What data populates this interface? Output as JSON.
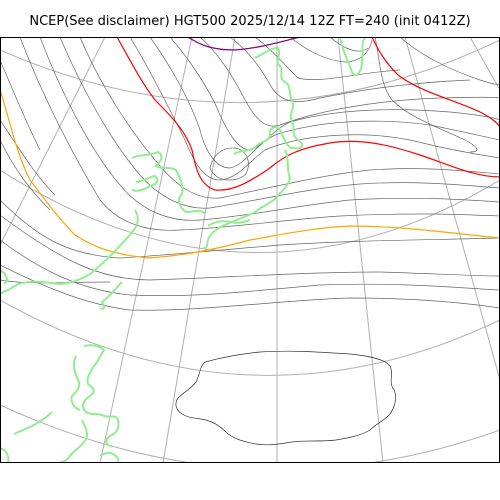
{
  "title": "NCEP(See disclaimer) HGT500 2025/12/14 12Z FT=240 (init 0412Z)",
  "map": {
    "variable": "HGT500",
    "valid_time": "2025/12/14 12Z",
    "forecast_hour": "FT=240",
    "init": "init 0412Z",
    "colors": {
      "contour": "#666666",
      "graticule": "#b0b0b0",
      "coastline": "#90ee90",
      "highlight_orange": "#ffa500",
      "highlight_red": "#ff0000",
      "highlight_purple": "#800080",
      "land_outline": "#333333",
      "frame": "#000000"
    }
  }
}
